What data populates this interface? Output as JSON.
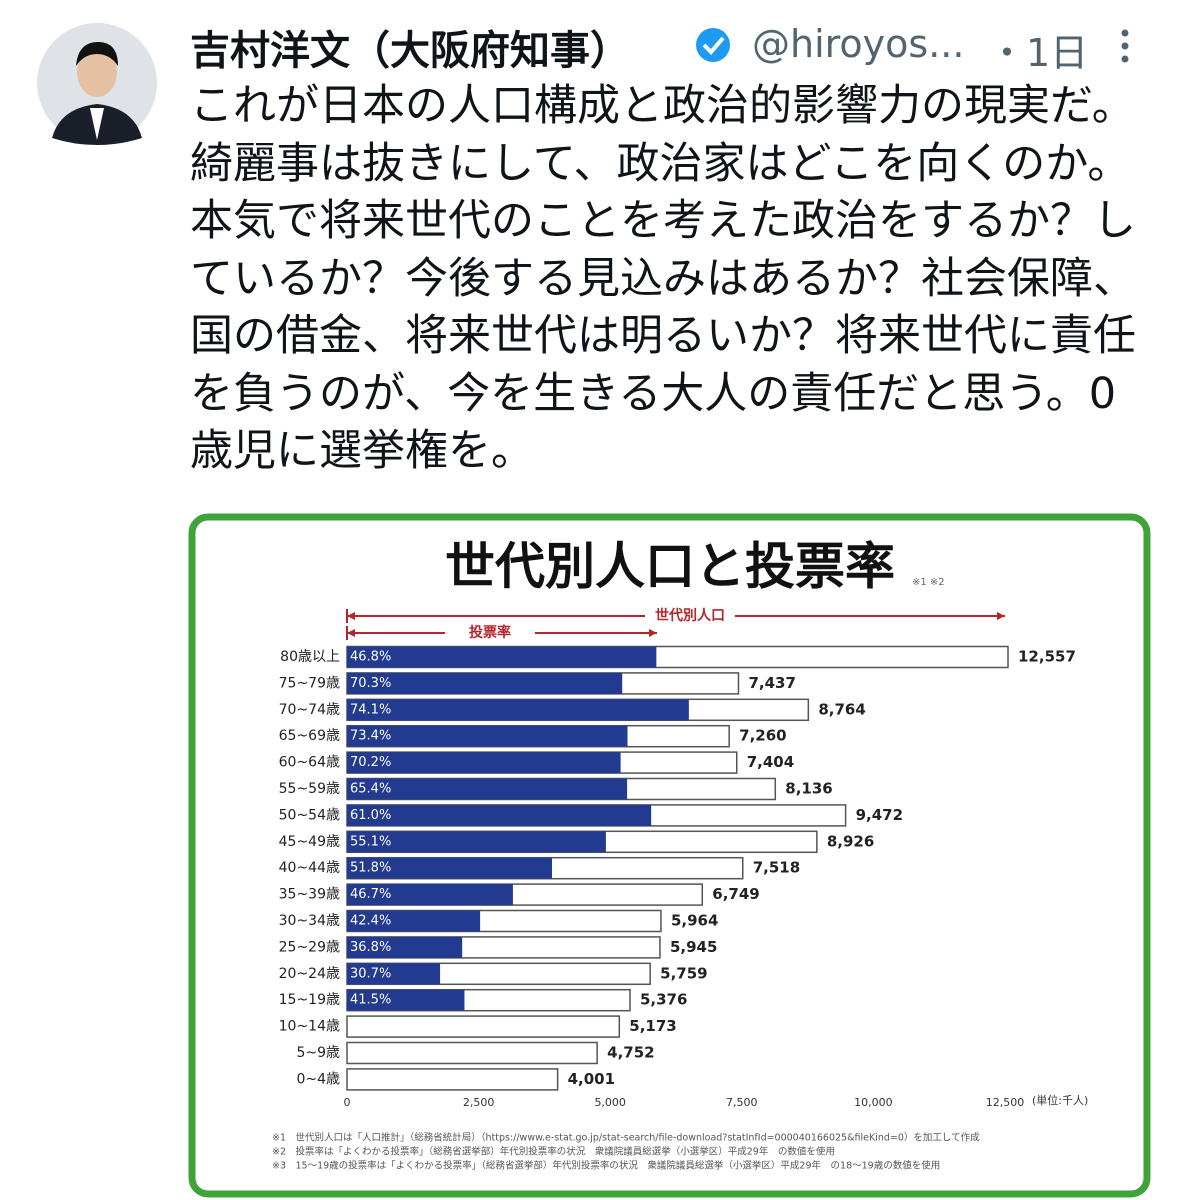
{
  "tweet": {
    "author": "吉村洋文（大阪府知事）",
    "handle": "@hiroyos...",
    "time": "・1日",
    "text": "これが日本の人口構成と政治的影響力の現実だ。綺麗事は抜きにして、政治家はどこを向くのか。本気で将来世代のことを考えた政治をするか？しているか？今後する見込みはあるか？社会保障、国の借金、将来世代は明るいか？将来世代に責任を負うのが、今を生きる大人の責任だと思う。0歳児に選挙権を。"
  },
  "chart_data": {
    "type": "bar",
    "orientation": "horizontal",
    "title": "世代別人口と投票率",
    "title_note": "※1 ※2",
    "unit_label": "(単位:千人)",
    "categories": [
      "80歳以上",
      "75~79歳",
      "70~74歳",
      "65~69歳",
      "60~64歳",
      "55~59歳",
      "50~54歳",
      "45~49歳",
      "40~44歳",
      "35~39歳",
      "30~34歳",
      "25~29歳",
      "20~24歳",
      "15~19歳",
      "10~14歳",
      "5~9歳",
      "0~4歳"
    ],
    "series": [
      {
        "name": "世代別人口",
        "color": "#ffffff",
        "values": [
          12557,
          7437,
          8764,
          7260,
          7404,
          8136,
          9472,
          8926,
          7518,
          6749,
          5964,
          5945,
          5759,
          5376,
          5173,
          4752,
          4001
        ],
        "value_labels": [
          "12,557",
          "7,437",
          "8,764",
          "7,260",
          "7,404",
          "8,136",
          "9,472",
          "8,926",
          "7,518",
          "6,749",
          "5,964",
          "5,945",
          "5,759",
          "5,376",
          "5,173",
          "4,752",
          "4,001"
        ]
      },
      {
        "name": "投票率",
        "color": "#223a8f",
        "values": [
          46.8,
          70.3,
          74.1,
          73.4,
          70.2,
          65.4,
          61.0,
          55.1,
          51.8,
          46.7,
          42.4,
          36.8,
          30.7,
          41.5,
          null,
          null,
          null
        ],
        "value_labels": [
          "46.8%",
          "70.3%",
          "74.1%",
          "73.4%",
          "70.2%",
          "65.4%",
          "61.0%",
          "55.1%",
          "51.8%",
          "46.7%",
          "42.4%",
          "36.8%",
          "30.7%",
          "41.5%",
          null,
          null,
          null
        ]
      }
    ],
    "bar_note": {
      "category_index": 13,
      "text": "※3"
    },
    "xlim": [
      0,
      12500
    ],
    "xticks": [
      0,
      {
        "value": 2500,
        "label": "2,500"
      },
      {
        "value": 5000,
        "label": "5,000"
      },
      {
        "value": 7500,
        "label": "7,500"
      },
      {
        "value": 10000,
        "label": "10,000"
      },
      {
        "value": 12500,
        "label": "12,500"
      }
    ],
    "footnotes": [
      "※1　世代別人口は「人口推計」（総務省統計局）（https://www.e-stat.go.jp/stat-search/file-download?statInfId=000040166025&fileKind=0）を加工して作成",
      "※2　投票率は「よくわかる投票率」（総務省選挙部）年代別投票率の状況　衆議院議員総選挙（小選挙区）平成29年　の数値を使用",
      "※3　15〜19歳の投票率は「よくわかる投票率」（総務省選挙部）年代別投票率の状況　衆議院議員総選挙（小選挙区）平成29年　の18〜19歳の数値を使用"
    ]
  }
}
